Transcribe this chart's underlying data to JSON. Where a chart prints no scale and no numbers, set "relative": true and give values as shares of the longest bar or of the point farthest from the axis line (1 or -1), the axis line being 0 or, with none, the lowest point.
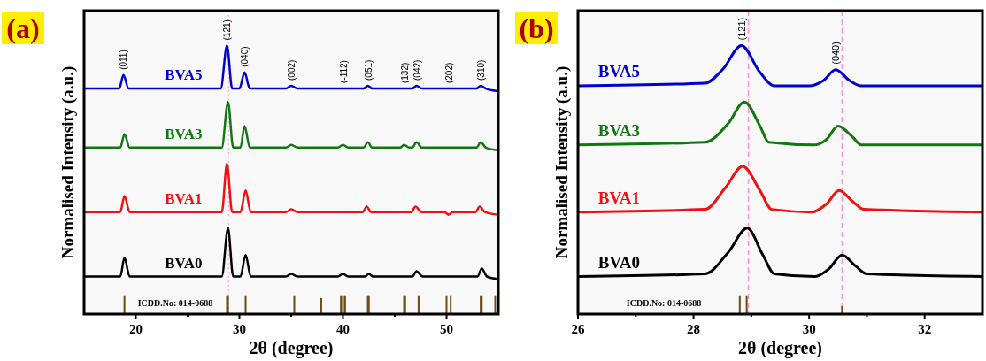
{
  "chart_data": [
    {
      "type": "line",
      "title": "(a)",
      "xlabel": "2θ (degree)",
      "ylabel": "Normalised Intensity (a.u.)",
      "relative": true,
      "xlim": [
        15,
        55
      ],
      "xticks": [
        20,
        {
          "value": 25,
          "label": null
        },
        30,
        {
          "value": 35,
          "label": null
        },
        40,
        {
          "value": 45,
          "label": null
        },
        50
      ],
      "marker": "none",
      "line_style": "solid",
      "series": [
        {
          "name": "BVA5",
          "color": "#0000cc",
          "x": [
            15,
            18.4,
            18.8,
            19.3,
            28.2,
            28.8,
            29.3,
            30.0,
            30.5,
            31.0,
            34.5,
            35.0,
            35.6,
            39.5,
            40.0,
            40.5,
            42.0,
            42.4,
            42.8,
            45.5,
            45.9,
            46.4,
            46.7,
            47.1,
            47.6,
            49.8,
            50.2,
            50.6,
            52.9,
            53.3,
            53.8,
            55
          ],
          "values": [
            0.84,
            0.84,
            0.89,
            0.84,
            0.84,
            1.0,
            0.84,
            0.84,
            0.9,
            0.84,
            0.84,
            0.85,
            0.84,
            0.84,
            0.84,
            0.84,
            0.84,
            0.85,
            0.84,
            0.84,
            0.84,
            0.84,
            0.84,
            0.85,
            0.84,
            0.84,
            0.84,
            0.84,
            0.84,
            0.85,
            0.84,
            0.83
          ]
        },
        {
          "name": "BVA3",
          "color": "#117711",
          "x": [
            15,
            18.5,
            18.9,
            19.4,
            28.3,
            28.9,
            29.4,
            30.1,
            30.5,
            31.0,
            34.5,
            35.0,
            35.6,
            39.5,
            40.0,
            40.5,
            42.0,
            42.4,
            42.8,
            45.5,
            45.9,
            46.4,
            46.7,
            47.1,
            47.6,
            49.8,
            50.2,
            50.6,
            52.9,
            53.3,
            53.8,
            55
          ],
          "values": [
            0.62,
            0.62,
            0.67,
            0.62,
            0.62,
            0.79,
            0.62,
            0.62,
            0.7,
            0.62,
            0.62,
            0.63,
            0.62,
            0.62,
            0.63,
            0.62,
            0.62,
            0.64,
            0.62,
            0.62,
            0.63,
            0.62,
            0.62,
            0.64,
            0.62,
            0.62,
            0.62,
            0.62,
            0.62,
            0.64,
            0.62,
            0.61
          ]
        },
        {
          "name": "BVA1",
          "color": "#ee1111",
          "x": [
            15,
            18.5,
            18.9,
            19.4,
            28.3,
            28.8,
            29.3,
            30.1,
            30.6,
            31.1,
            34.5,
            35.0,
            35.6,
            39.5,
            40.0,
            40.5,
            41.9,
            42.3,
            42.7,
            45.3,
            45.7,
            46.2,
            46.6,
            47.0,
            47.6,
            49.8,
            50.2,
            50.6,
            52.8,
            53.2,
            53.7,
            55
          ],
          "values": [
            0.38,
            0.38,
            0.44,
            0.38,
            0.38,
            0.56,
            0.38,
            0.38,
            0.46,
            0.38,
            0.38,
            0.39,
            0.38,
            0.38,
            0.38,
            0.38,
            0.38,
            0.4,
            0.38,
            0.38,
            0.38,
            0.38,
            0.38,
            0.4,
            0.38,
            0.38,
            0.37,
            0.38,
            0.38,
            0.4,
            0.38,
            0.37
          ]
        },
        {
          "name": "BVA0",
          "color": "#000000",
          "x": [
            15,
            18.5,
            18.9,
            19.4,
            28.3,
            28.9,
            29.4,
            30.1,
            30.6,
            31.1,
            34.5,
            35.0,
            35.6,
            39.5,
            40.0,
            40.5,
            42.1,
            42.5,
            42.9,
            45.4,
            45.8,
            46.3,
            46.7,
            47.1,
            47.7,
            49.9,
            50.3,
            50.7,
            53.0,
            53.4,
            53.9,
            55
          ],
          "values": [
            0.14,
            0.14,
            0.21,
            0.14,
            0.14,
            0.32,
            0.14,
            0.14,
            0.22,
            0.14,
            0.14,
            0.15,
            0.14,
            0.14,
            0.15,
            0.14,
            0.14,
            0.15,
            0.14,
            0.14,
            0.14,
            0.14,
            0.14,
            0.16,
            0.14,
            0.14,
            0.14,
            0.14,
            0.14,
            0.17,
            0.14,
            0.13
          ]
        },
        {
          "type": "bar",
          "color": "#6b4c12",
          "x": [
            18.9,
            28.8,
            28.9,
            30.6,
            35.3,
            37.9,
            39.8,
            40.0,
            40.2,
            42.4,
            42.5,
            45.9,
            46.0,
            47.3,
            50.0,
            50.4,
            53.3,
            53.4,
            54.7
          ],
          "values": [
            0.07,
            0.07,
            0.07,
            0.07,
            0.07,
            0.06,
            0.07,
            0.07,
            0.07,
            0.07,
            0.07,
            0.07,
            0.07,
            0.07,
            0.07,
            0.07,
            0.07,
            0.07,
            0.07
          ]
        }
      ],
      "ref_lines": [
        {
          "axis": "x",
          "value": 28.95,
          "color": "#ff99cc",
          "line_style": "dotted"
        }
      ],
      "annotations": [
        {
          "text": "(011)",
          "x": 18.8,
          "y": 0.89
        },
        {
          "text": "(121)",
          "x": 28.8,
          "y": 1.0
        },
        {
          "text": "(040)",
          "x": 30.5,
          "y": 0.9
        },
        {
          "text": "(002)",
          "x": 35.0,
          "y": 0.85
        },
        {
          "text": "(-112)",
          "x": 40.0,
          "y": 0.84
        },
        {
          "text": "(051)",
          "x": 42.4,
          "y": 0.85
        },
        {
          "text": "(132)",
          "x": 45.9,
          "y": 0.84
        },
        {
          "text": "(042)",
          "x": 47.1,
          "y": 0.85
        },
        {
          "text": "(202)",
          "x": 50.2,
          "y": 0.84
        },
        {
          "text": "(310)",
          "x": 53.3,
          "y": 0.85
        },
        "ICDD.No: 014-0688"
      ]
    },
    {
      "type": "line",
      "title": "(b)",
      "xlabel": "2θ (degree)",
      "ylabel": "Normalised Intensity (a.u.)",
      "relative": true,
      "xlim": [
        26,
        33
      ],
      "xticks": [
        26,
        {
          "value": 27,
          "label": null
        },
        28,
        {
          "value": 29,
          "label": null
        },
        30,
        {
          "value": 31,
          "label": null
        },
        32
      ],
      "marker": "none",
      "line_style": "solid",
      "series": [
        {
          "name": "BVA5",
          "color": "#0000cc",
          "x": [
            26,
            28.2,
            28.5,
            28.83,
            29.15,
            29.4,
            30.0,
            30.25,
            30.46,
            30.7,
            30.9,
            33
          ],
          "values": [
            0.85,
            0.86,
            0.91,
            1.0,
            0.9,
            0.85,
            0.85,
            0.87,
            0.91,
            0.87,
            0.85,
            0.85
          ]
        },
        {
          "name": "BVA3",
          "color": "#117711",
          "x": [
            26,
            28.2,
            28.6,
            28.88,
            29.15,
            29.3,
            30.1,
            30.3,
            30.5,
            30.75,
            30.9,
            33
          ],
          "values": [
            0.63,
            0.64,
            0.71,
            0.79,
            0.7,
            0.64,
            0.63,
            0.65,
            0.7,
            0.66,
            0.63,
            0.63
          ]
        },
        {
          "name": "BVA1",
          "color": "#ee1111",
          "x": [
            26,
            28.2,
            28.55,
            28.85,
            29.15,
            29.35,
            30.05,
            30.3,
            30.52,
            30.75,
            30.95,
            33
          ],
          "values": [
            0.38,
            0.39,
            0.47,
            0.55,
            0.46,
            0.39,
            0.38,
            0.41,
            0.46,
            0.42,
            0.39,
            0.38
          ]
        },
        {
          "name": "BVA0",
          "color": "#000000",
          "x": [
            26,
            28.2,
            28.6,
            28.93,
            29.2,
            29.4,
            30.1,
            30.35,
            30.57,
            30.8,
            31.0,
            33
          ],
          "values": [
            0.14,
            0.15,
            0.23,
            0.32,
            0.22,
            0.15,
            0.14,
            0.17,
            0.22,
            0.18,
            0.15,
            0.14
          ]
        },
        {
          "type": "bar",
          "color": "#6b4c12",
          "x": [
            28.8,
            28.92,
            30.57
          ],
          "values": [
            0.07,
            0.07,
            0.03
          ]
        }
      ],
      "ref_lines": [
        {
          "axis": "x",
          "value": 28.95,
          "color": "#ff99cc",
          "line_style": "dashed"
        },
        {
          "axis": "x",
          "value": 30.57,
          "color": "#ff99cc",
          "line_style": "dashed"
        }
      ],
      "annotations": [
        {
          "text": "(121)",
          "x": 28.83,
          "y": 1.0
        },
        {
          "text": "(040)",
          "x": 30.46,
          "y": 0.91
        },
        "ICDD.No: 014-0688"
      ]
    }
  ]
}
